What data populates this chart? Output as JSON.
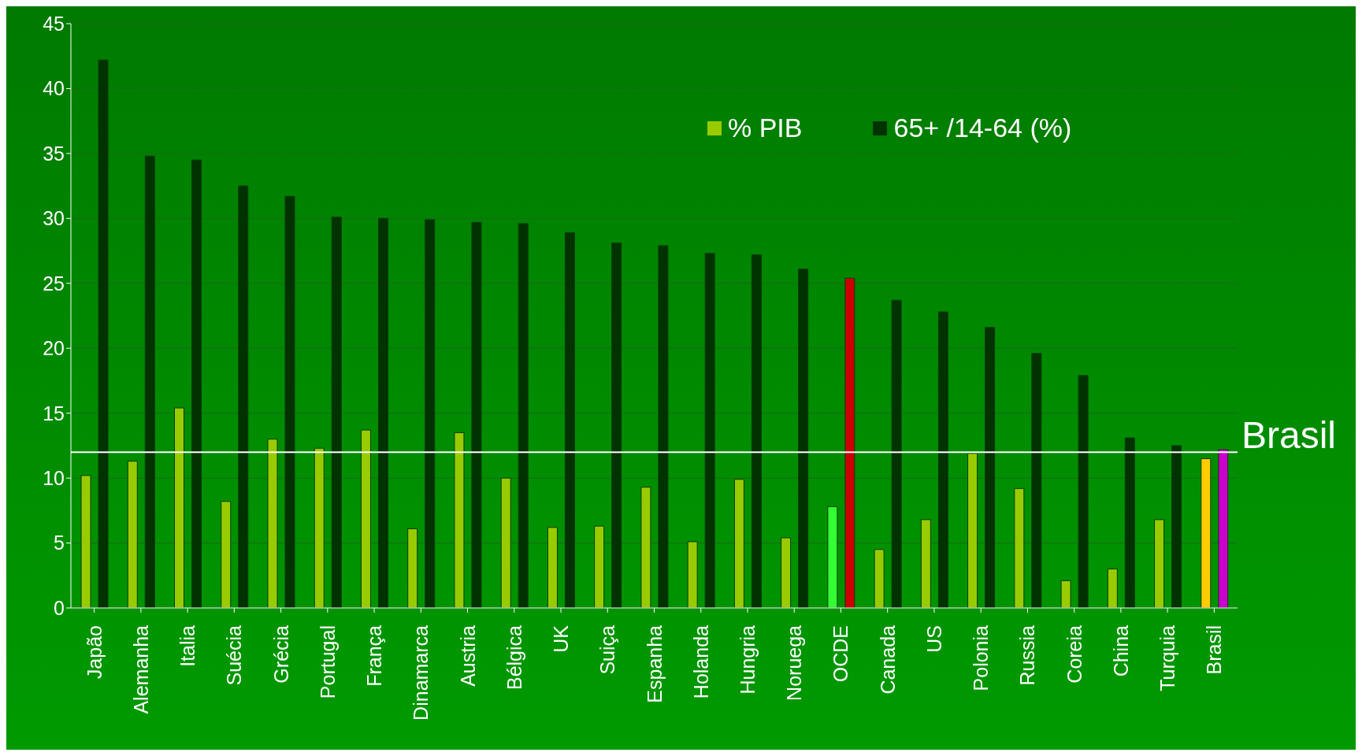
{
  "chart_data": {
    "type": "bar",
    "categories": [
      "Japão",
      "Alemanha",
      "Italia",
      "Suécia",
      "Grécia",
      "Portugal",
      "França",
      "Dinamarca",
      "Austria",
      "Bélgica",
      "UK",
      "Suiça",
      "Espanha",
      "Holanda",
      "Hungria",
      "Noruega",
      "OCDE",
      "Canada",
      "US",
      "Polonia",
      "Russia",
      "Coreia",
      "China",
      "Turquia",
      "Brasil"
    ],
    "series": [
      {
        "name": "% PIB",
        "color": "#99cc00",
        "colors": [
          "#99cc00",
          "#99cc00",
          "#99cc00",
          "#99cc00",
          "#99cc00",
          "#99cc00",
          "#99cc00",
          "#99cc00",
          "#99cc00",
          "#99cc00",
          "#99cc00",
          "#99cc00",
          "#99cc00",
          "#99cc00",
          "#99cc00",
          "#99cc00",
          "#33ff33",
          "#99cc00",
          "#99cc00",
          "#99cc00",
          "#99cc00",
          "#99cc00",
          "#99cc00",
          "#99cc00",
          "#ffcc00"
        ],
        "values": [
          10.2,
          11.3,
          15.4,
          8.2,
          13.0,
          12.3,
          13.7,
          6.1,
          13.5,
          10.0,
          6.2,
          6.3,
          9.3,
          5.1,
          9.9,
          5.4,
          7.8,
          4.5,
          6.8,
          11.9,
          9.2,
          2.1,
          3.0,
          6.8,
          11.5
        ]
      },
      {
        "name": "65+ /14-64 (%)",
        "color": "#003300",
        "colors": [
          "#003300",
          "#003300",
          "#003300",
          "#003300",
          "#003300",
          "#003300",
          "#003300",
          "#003300",
          "#003300",
          "#003300",
          "#003300",
          "#003300",
          "#003300",
          "#003300",
          "#003300",
          "#003300",
          "#cc0000",
          "#003300",
          "#003300",
          "#003300",
          "#003300",
          "#003300",
          "#003300",
          "#003300",
          "#cc00cc"
        ],
        "values": [
          42.2,
          34.8,
          34.5,
          32.5,
          31.7,
          30.1,
          30.0,
          29.9,
          29.7,
          29.6,
          28.9,
          28.1,
          27.9,
          27.3,
          27.2,
          26.1,
          25.4,
          23.7,
          22.8,
          21.6,
          19.6,
          17.9,
          13.1,
          12.5,
          12.2
        ]
      }
    ],
    "ylim": [
      0,
      45
    ],
    "yticks": [
      0,
      5,
      10,
      15,
      20,
      25,
      30,
      35,
      40,
      45
    ],
    "grid": "y",
    "legend": "top right",
    "ref_lines": [
      {
        "axis": "y",
        "value": 12,
        "label": "Brasil",
        "color": "#ffffff"
      }
    ]
  }
}
